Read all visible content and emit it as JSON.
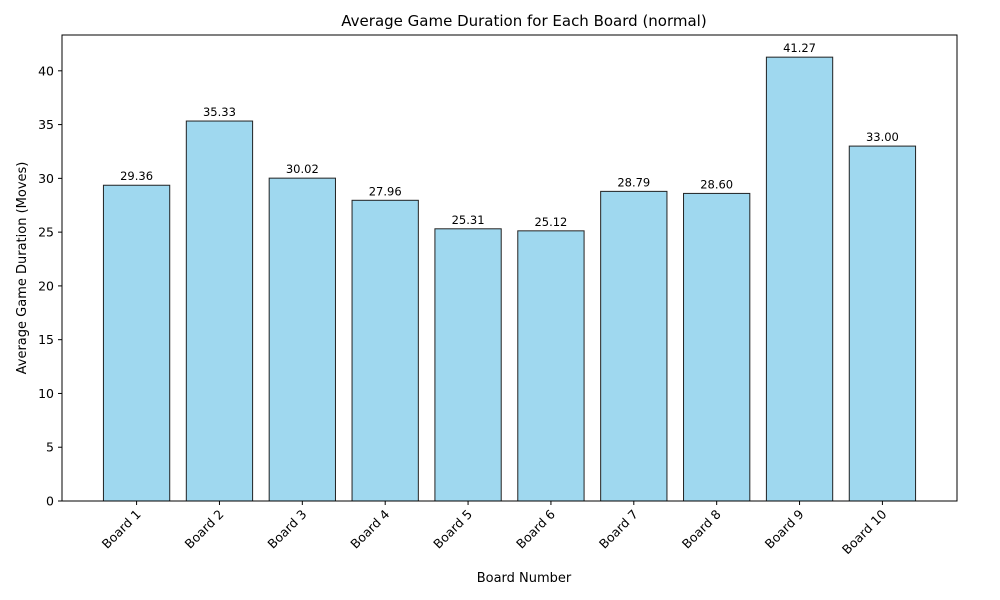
{
  "chart_data": {
    "type": "bar",
    "title": "Average Game Duration for Each Board (normal)",
    "xlabel": "Board Number",
    "ylabel": "Average Game Duration (Moves)",
    "categories": [
      "Board 1",
      "Board 2",
      "Board 3",
      "Board 4",
      "Board 5",
      "Board 6",
      "Board 7",
      "Board 8",
      "Board 9",
      "Board 10"
    ],
    "values": [
      29.36,
      35.33,
      30.02,
      27.96,
      25.31,
      25.12,
      28.79,
      28.6,
      41.27,
      33.0
    ],
    "value_labels": [
      "29.36",
      "35.33",
      "30.02",
      "27.96",
      "25.31",
      "25.12",
      "28.79",
      "28.60",
      "41.27",
      "33.00"
    ],
    "ylim": [
      0,
      43.33
    ],
    "yticks": [
      0,
      5,
      10,
      15,
      20,
      25,
      30,
      35,
      40
    ],
    "grid": false,
    "colors": {
      "bar_fill": "#87CEEB",
      "bar_edge": "#222222"
    }
  }
}
